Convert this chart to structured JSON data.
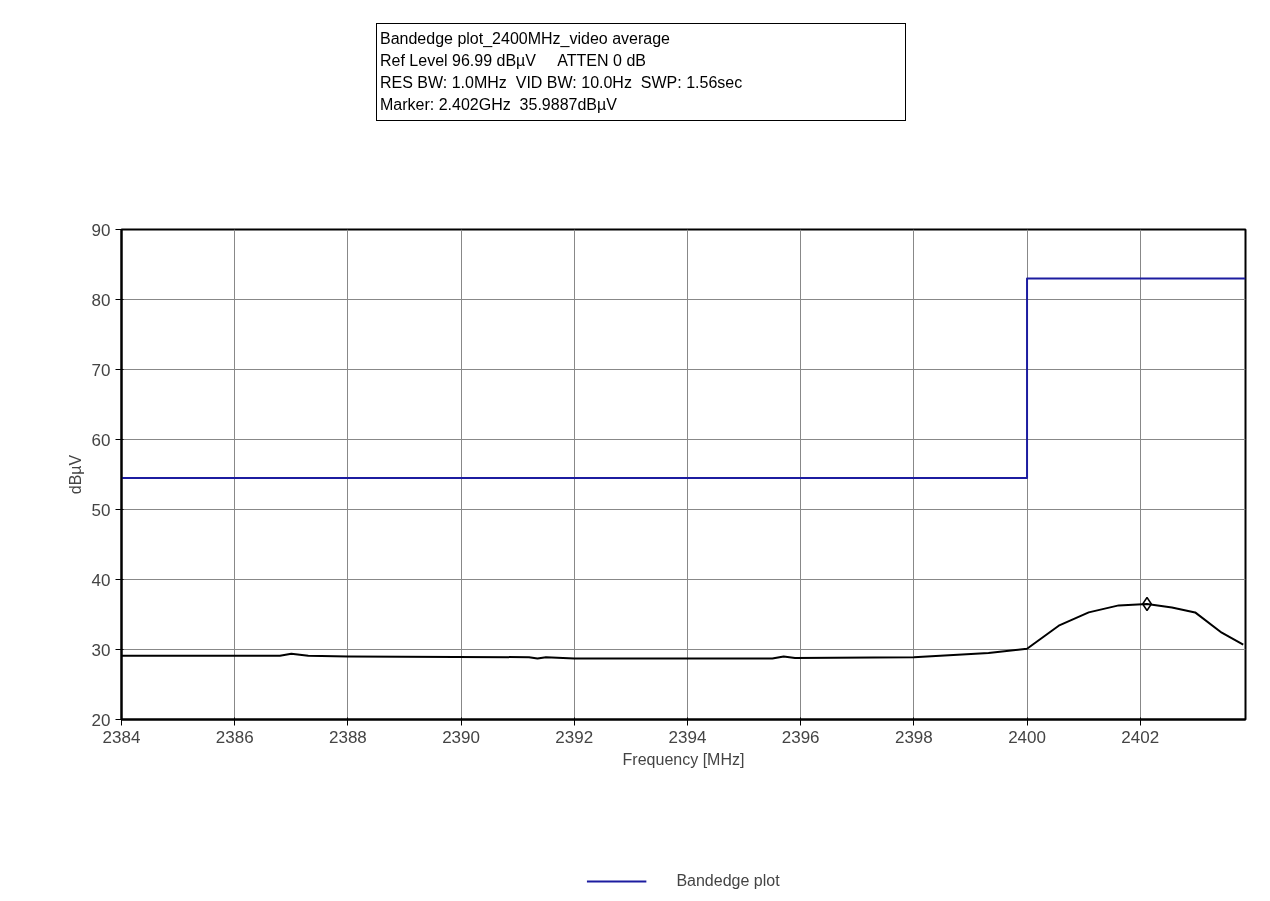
{
  "chart_data": {
    "type": "line",
    "title": "Bandedge plot_2400MHz_video average",
    "annotations": [
      "Ref Level 96.99 dBµV     ATTEN 0 dB",
      "RES BW: 1.0MHz  VID BW: 10.0Hz  SWP: 1.56sec",
      "Marker: 2.402GHz  35.9887dBµV"
    ],
    "xlabel": "Frequency [MHz]",
    "ylabel": "dBµV",
    "xlim": [
      2384,
      2403.86
    ],
    "ylim": [
      20,
      90
    ],
    "xticks": [
      2384,
      2386,
      2388,
      2390,
      2392,
      2394,
      2396,
      2398,
      2400,
      2402
    ],
    "yticks": [
      20,
      30,
      40,
      50,
      60,
      70,
      80,
      90
    ],
    "grid": true,
    "legend": "bottom",
    "series": [
      {
        "name": "Bandedge plot",
        "color": "#1c1ca0",
        "x": [
          2384,
          2400,
          2400,
          2403.86
        ],
        "values": [
          54.5,
          54.5,
          83,
          83
        ]
      },
      {
        "color": "#000000",
        "x": [
          2384,
          2386.8,
          2387.0,
          2387.3,
          2388,
          2391.2,
          2391.35,
          2391.5,
          2392,
          2395.5,
          2395.7,
          2395.9,
          2398,
          2399.32,
          2400,
          2400.56,
          2401.09,
          2401.62,
          2402.12,
          2402.56,
          2402.97,
          2403.44,
          2403.82
        ],
        "values": [
          29.1,
          29.1,
          29.4,
          29.1,
          29.0,
          28.9,
          28.7,
          28.9,
          28.7,
          28.7,
          29.0,
          28.8,
          28.9,
          29.5,
          30.1,
          33.4,
          35.3,
          36.3,
          36.5,
          36.0,
          35.3,
          32.4,
          30.7
        ]
      },
      {
        "color": "#000000",
        "type": "scatter",
        "marker": "diamond",
        "x": [
          2402.12
        ],
        "values": [
          36.5
        ]
      }
    ]
  }
}
